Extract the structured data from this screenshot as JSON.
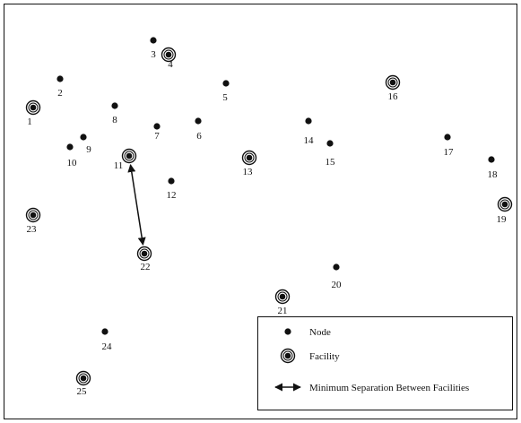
{
  "nodes": [
    {
      "id": "1",
      "facility": true
    },
    {
      "id": "2",
      "facility": false
    },
    {
      "id": "3",
      "facility": false
    },
    {
      "id": "4",
      "facility": true
    },
    {
      "id": "5",
      "facility": false
    },
    {
      "id": "6",
      "facility": false
    },
    {
      "id": "7",
      "facility": false
    },
    {
      "id": "8",
      "facility": false
    },
    {
      "id": "9",
      "facility": false
    },
    {
      "id": "10",
      "facility": false
    },
    {
      "id": "11",
      "facility": true
    },
    {
      "id": "12",
      "facility": false
    },
    {
      "id": "13",
      "facility": true
    },
    {
      "id": "14",
      "facility": false
    },
    {
      "id": "15",
      "facility": false
    },
    {
      "id": "16",
      "facility": true
    },
    {
      "id": "17",
      "facility": false
    },
    {
      "id": "18",
      "facility": false
    },
    {
      "id": "19",
      "facility": true
    },
    {
      "id": "20",
      "facility": false
    },
    {
      "id": "21",
      "facility": true
    },
    {
      "id": "22",
      "facility": true
    },
    {
      "id": "23",
      "facility": true
    },
    {
      "id": "24",
      "facility": false
    },
    {
      "id": "25",
      "facility": true
    }
  ],
  "separation_pair": [
    "11",
    "22"
  ],
  "legend": {
    "node_label": "Node",
    "facility_label": "Facility",
    "separation_label": "Minimum Separation Between Facilities"
  }
}
